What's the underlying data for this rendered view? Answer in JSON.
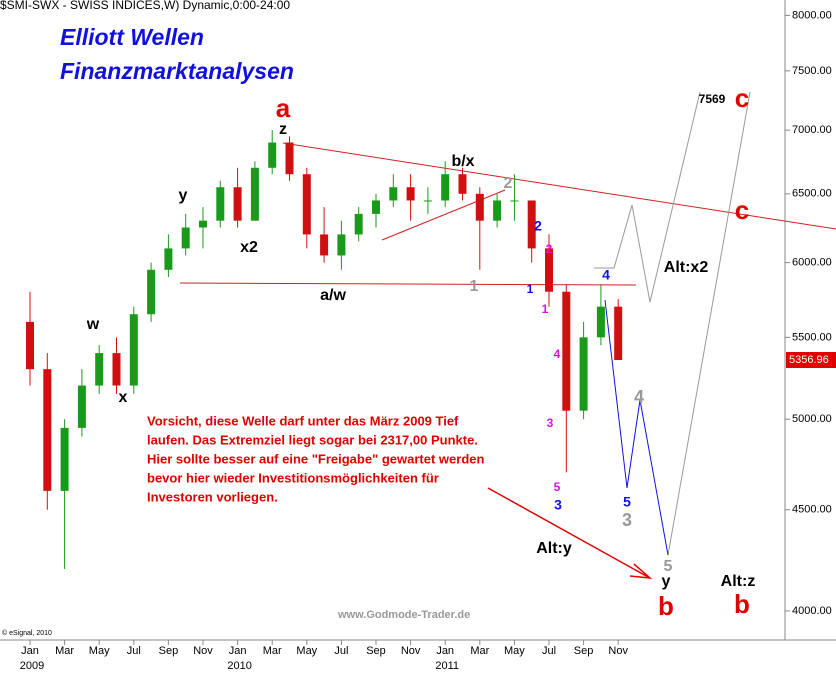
{
  "chart_data": {
    "type": "candlestick",
    "header": "$SMI-SWX - SWISS INDICES,W) Dynamic,0:00-24:00",
    "title": [
      "Elliott Wellen",
      "Finanzmarktanalysen"
    ],
    "log_scale": true,
    "up_color": "#1a9a1a",
    "down_color": "#d01010",
    "x": [
      "2009-01",
      "2009-02",
      "2009-03",
      "2009-04",
      "2009-05",
      "2009-06",
      "2009-07",
      "2009-08",
      "2009-09",
      "2009-10",
      "2009-11",
      "2009-12",
      "2010-01",
      "2010-02",
      "2010-03",
      "2010-04",
      "2010-05",
      "2010-06",
      "2010-07",
      "2010-08",
      "2010-09",
      "2010-10",
      "2010-11",
      "2010-12",
      "2011-01",
      "2011-02",
      "2011-03",
      "2011-04",
      "2011-05",
      "2011-06",
      "2011-07",
      "2011-08",
      "2011-09",
      "2011-10",
      "2011-11"
    ],
    "open": [
      5600,
      5300,
      4600,
      4950,
      5200,
      5400,
      5200,
      5650,
      5950,
      6100,
      6250,
      6300,
      6550,
      6300,
      6700,
      6900,
      6650,
      6200,
      6050,
      6200,
      6350,
      6450,
      6550,
      6450,
      6450,
      6650,
      6500,
      6300,
      6450,
      6450,
      6100,
      5800,
      5050,
      5500,
      5700
    ],
    "high": [
      5800,
      5400,
      5000,
      5300,
      5450,
      5500,
      5700,
      6000,
      6200,
      6350,
      6400,
      6600,
      6700,
      6750,
      7000,
      6950,
      6700,
      6400,
      6300,
      6400,
      6500,
      6650,
      6650,
      6550,
      6750,
      6700,
      6550,
      6500,
      6650,
      6450,
      6200,
      5850,
      5600,
      5850,
      5750
    ],
    "low": [
      5200,
      4500,
      4200,
      4900,
      5150,
      5150,
      5150,
      5600,
      5900,
      6050,
      6100,
      6250,
      6250,
      6300,
      6650,
      6600,
      6100,
      6000,
      5950,
      6150,
      6250,
      6400,
      6300,
      6350,
      6400,
      6450,
      5950,
      6250,
      6300,
      6000,
      5700,
      4700,
      5000,
      5450,
      5357
    ],
    "close": [
      5300,
      4600,
      4950,
      5200,
      5400,
      5200,
      5650,
      5950,
      6100,
      6250,
      6300,
      6550,
      6300,
      6700,
      6900,
      6650,
      6200,
      6050,
      6200,
      6350,
      6450,
      6550,
      6450,
      6450,
      6650,
      6500,
      6300,
      6450,
      6450,
      6100,
      5800,
      5050,
      5500,
      5700,
      5357
    ],
    "last_price": 5356.96,
    "ylim": [
      3778,
      8145
    ],
    "yticks": [
      {
        "value": 4000,
        "label": "4000.00"
      },
      {
        "value": 4500,
        "label": "4500.00"
      },
      {
        "value": 5000,
        "label": "5000.00"
      },
      {
        "value": 5500,
        "label": "5500.00"
      },
      {
        "value": 6000,
        "label": "6000.00"
      },
      {
        "value": 6500,
        "label": "6500.00"
      },
      {
        "value": 7000,
        "label": "7000.00"
      },
      {
        "value": 7500,
        "label": "7500.00"
      },
      {
        "value": 8000,
        "label": "8000.00"
      }
    ],
    "xticks": [
      {
        "value": "2009-01",
        "label": "Jan"
      },
      {
        "value": "2009-03",
        "label": "Mar"
      },
      {
        "value": "2009-05",
        "label": "May"
      },
      {
        "value": "2009-07",
        "label": "Jul"
      },
      {
        "value": "2009-09",
        "label": "Sep"
      },
      {
        "value": "2009-11",
        "label": "Nov"
      },
      {
        "value": "2010-01",
        "label": "Jan"
      },
      {
        "value": "2010-03",
        "label": "Mar"
      },
      {
        "value": "2010-05",
        "label": "May"
      },
      {
        "value": "2010-07",
        "label": "Jul"
      },
      {
        "value": "2010-09",
        "label": "Sep"
      },
      {
        "value": "2010-11",
        "label": "Nov"
      },
      {
        "value": "2011-01",
        "label": "Jan"
      },
      {
        "value": "2011-03",
        "label": "Mar"
      },
      {
        "value": "2011-05",
        "label": "May"
      },
      {
        "value": "2011-07",
        "label": "Jul"
      },
      {
        "value": "2011-09",
        "label": "Sep"
      },
      {
        "value": "2011-11",
        "label": "Nov"
      }
    ],
    "xyears": [
      {
        "value": "2009-01",
        "label": "2009"
      },
      {
        "value": "2010-01",
        "label": "2010"
      },
      {
        "value": "2011-01",
        "label": "2011"
      }
    ],
    "annotations": [
      {
        "text": "a",
        "color": "#e00000"
      },
      {
        "text": "z",
        "color": "#000"
      },
      {
        "text": "y",
        "color": "#000"
      },
      {
        "text": "x2",
        "color": "#000"
      },
      {
        "text": "w",
        "color": "#000"
      },
      {
        "text": "x",
        "color": "#000"
      },
      {
        "text": "a/w",
        "color": "#000"
      },
      {
        "text": "b/x",
        "color": "#000"
      },
      {
        "text": "2",
        "color": "#999"
      },
      {
        "text": "1",
        "color": "#999"
      },
      {
        "text": "2",
        "color": "#1010e0"
      },
      {
        "text": "2",
        "color": "#e010e0"
      },
      {
        "text": "1",
        "color": "#1010e0"
      },
      {
        "text": "1",
        "color": "#e010e0"
      },
      {
        "text": "4",
        "color": "#e010e0"
      },
      {
        "text": "3",
        "color": "#e010e0"
      },
      {
        "text": "5",
        "color": "#e010e0"
      },
      {
        "text": "3",
        "color": "#1010e0"
      },
      {
        "text": "4",
        "color": "#1010e0"
      },
      {
        "text": "5",
        "color": "#1010e0"
      },
      {
        "text": "3",
        "color": "#999"
      },
      {
        "text": "4",
        "color": "#999"
      },
      {
        "text": "5",
        "color": "#999"
      },
      {
        "text": "y",
        "color": "#000"
      },
      {
        "text": "b",
        "color": "#e00000"
      },
      {
        "text": "7569",
        "color": "#000"
      },
      {
        "text": "c",
        "color": "#e00000"
      },
      {
        "text": "Alt:x2",
        "color": "#000"
      },
      {
        "text": "c",
        "color": "#e00000"
      },
      {
        "text": "Alt:y",
        "color": "#000"
      },
      {
        "text": "Alt:z",
        "color": "#000"
      },
      {
        "text": "b",
        "color": "#e00000"
      }
    ],
    "note": [
      "Vorsicht, diese Welle darf unter das März 2009 Tief",
      "laufen. Das Extremziel liegt sogar bei 2317,00 Punkte.",
      "Hier sollte besser auf eine \"Freigabe\" gewartet werden",
      "bevor hier wieder Investitionsmöglichkeiten für",
      "Investoren vorliegen."
    ],
    "watermark": "www.Godmode-Trader.de",
    "copyright": "© eSignal, 2010"
  }
}
